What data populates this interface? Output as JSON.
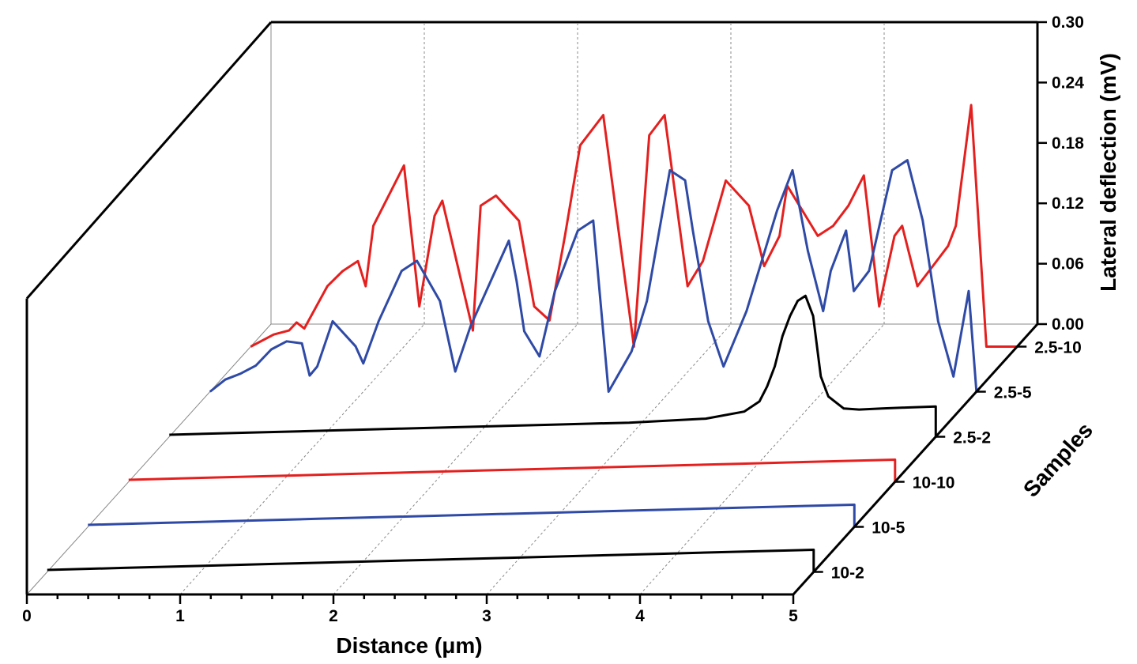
{
  "colors": {
    "red": "#e4201f",
    "blue": "#2f4aa6",
    "black": "#000000",
    "grid": "#888888"
  },
  "chart_data": {
    "type": "line",
    "subtype": "3d-waterfall",
    "title": "",
    "xlabel": "Distance (μm)",
    "ylabel": "Samples",
    "zlabel": "Lateral deflection (mV)",
    "xlim": [
      0,
      5
    ],
    "zlim": [
      0,
      0.3
    ],
    "x_ticks": [
      "0",
      "1",
      "2",
      "3",
      "4",
      "5"
    ],
    "z_ticks": [
      "0.00",
      "0.06",
      "0.12",
      "0.18",
      "0.24",
      "0.30"
    ],
    "categories": [
      "10-2",
      "10-5",
      "10-10",
      "2.5-2",
      "2.5-5",
      "2.5-10"
    ],
    "series": [
      {
        "name": "10-2",
        "color": "#000000",
        "x": [
          0,
          0.5,
          1,
          1.5,
          2,
          2.5,
          3,
          3.5,
          4,
          4.5,
          5
        ],
        "y": [
          0.002,
          0.004,
          0.006,
          0.008,
          0.01,
          0.012,
          0.014,
          0.016,
          0.018,
          0.02,
          0.022
        ]
      },
      {
        "name": "10-5",
        "color": "#2f4aa6",
        "x": [
          0,
          0.5,
          1,
          1.5,
          2,
          2.5,
          3,
          3.5,
          4,
          4.5,
          5
        ],
        "y": [
          0.002,
          0.004,
          0.006,
          0.008,
          0.01,
          0.012,
          0.014,
          0.016,
          0.018,
          0.02,
          0.022
        ]
      },
      {
        "name": "10-10",
        "color": "#e4201f",
        "x": [
          0,
          0.5,
          1,
          1.5,
          2,
          2.5,
          3,
          3.5,
          4,
          4.5,
          5
        ],
        "y": [
          0.002,
          0.004,
          0.006,
          0.008,
          0.01,
          0.012,
          0.014,
          0.016,
          0.018,
          0.02,
          0.022
        ]
      },
      {
        "name": "2.5-2",
        "color": "#000000",
        "x": [
          0,
          0.5,
          1,
          1.5,
          2,
          2.5,
          3,
          3.5,
          3.75,
          3.85,
          3.9,
          3.95,
          4.0,
          4.05,
          4.1,
          4.15,
          4.2,
          4.25,
          4.3,
          4.4,
          4.5,
          4.65,
          4.8,
          5
        ],
        "y": [
          0.002,
          0.004,
          0.006,
          0.008,
          0.01,
          0.012,
          0.014,
          0.018,
          0.025,
          0.035,
          0.05,
          0.07,
          0.1,
          0.12,
          0.135,
          0.14,
          0.12,
          0.06,
          0.04,
          0.028,
          0.027,
          0.028,
          0.029,
          0.03
        ]
      },
      {
        "name": "2.5-5",
        "color": "#2f4aa6",
        "x": [
          0,
          0.1,
          0.2,
          0.3,
          0.4,
          0.5,
          0.6,
          0.65,
          0.7,
          0.8,
          0.95,
          1.0,
          1.1,
          1.25,
          1.35,
          1.5,
          1.6,
          1.7,
          1.95,
          2.0,
          2.05,
          2.15,
          2.25,
          2.4,
          2.5,
          2.6,
          2.75,
          2.85,
          3.0,
          3.1,
          3.15,
          3.25,
          3.35,
          3.5,
          3.7,
          3.8,
          3.9,
          4.0,
          4.05,
          4.15,
          4.2,
          4.3,
          4.45,
          4.55,
          4.65,
          4.75,
          4.85,
          4.95,
          5.0
        ],
        "y": [
          0.0,
          0.012,
          0.018,
          0.026,
          0.042,
          0.05,
          0.048,
          0.016,
          0.025,
          0.07,
          0.045,
          0.028,
          0.07,
          0.12,
          0.13,
          0.09,
          0.02,
          0.065,
          0.15,
          0.11,
          0.06,
          0.035,
          0.1,
          0.16,
          0.17,
          0.0,
          0.04,
          0.09,
          0.22,
          0.21,
          0.16,
          0.07,
          0.025,
          0.08,
          0.18,
          0.22,
          0.14,
          0.08,
          0.12,
          0.16,
          0.1,
          0.12,
          0.22,
          0.23,
          0.17,
          0.07,
          0.015,
          0.1,
          0.0
        ]
      },
      {
        "name": "2.5-10",
        "color": "#e4201f",
        "x": [
          0,
          0.15,
          0.25,
          0.3,
          0.35,
          0.5,
          0.6,
          0.7,
          0.75,
          0.8,
          1.0,
          1.1,
          1.2,
          1.25,
          1.45,
          1.5,
          1.6,
          1.75,
          1.85,
          1.95,
          2.05,
          2.15,
          2.3,
          2.5,
          2.6,
          2.7,
          2.85,
          2.95,
          3.1,
          3.25,
          3.35,
          3.45,
          3.5,
          3.7,
          3.8,
          3.9,
          4.0,
          4.1,
          4.2,
          4.25,
          4.35,
          4.45,
          4.55,
          4.6,
          4.7,
          4.8,
          4.95,
          5.0
        ],
        "y": [
          0.0,
          0.012,
          0.016,
          0.024,
          0.018,
          0.06,
          0.075,
          0.085,
          0.06,
          0.12,
          0.18,
          0.04,
          0.13,
          0.145,
          0.016,
          0.14,
          0.15,
          0.125,
          0.04,
          0.026,
          0.11,
          0.2,
          0.23,
          0.0,
          0.21,
          0.23,
          0.06,
          0.085,
          0.165,
          0.14,
          0.08,
          0.11,
          0.16,
          0.11,
          0.12,
          0.14,
          0.17,
          0.04,
          0.11,
          0.12,
          0.06,
          0.08,
          0.1,
          0.12,
          0.24,
          0.0,
          0.0,
          0.0
        ]
      }
    ]
  }
}
